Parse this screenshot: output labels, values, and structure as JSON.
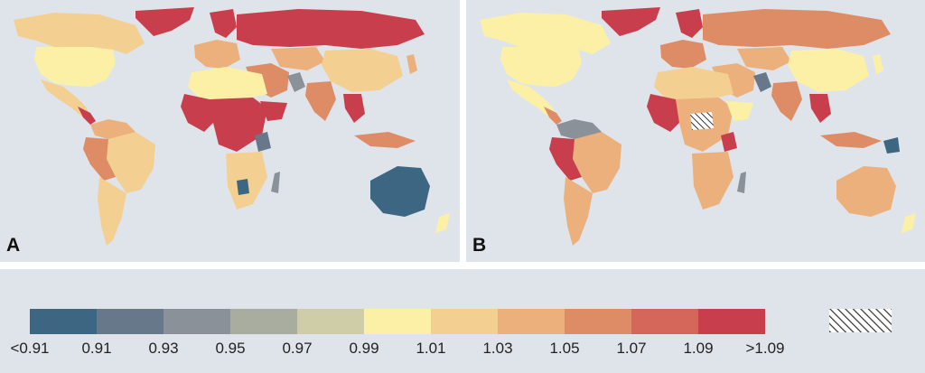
{
  "panels": [
    {
      "label": "A"
    },
    {
      "label": "B"
    }
  ],
  "legend": {
    "colors": [
      "#3d6683",
      "#66788a",
      "#8a9199",
      "#a9ad9f",
      "#cfcca8",
      "#fbf0a6",
      "#f3cf92",
      "#ebb07b",
      "#de8c66",
      "#d4675a",
      "#c83e4d"
    ],
    "tick_labels": [
      "<0.91",
      "0.91",
      "0.93",
      "0.95",
      "0.97",
      "0.99",
      "1.01",
      "1.03",
      "1.05",
      "1.07",
      "1.09",
      ">1.09"
    ],
    "no_data_pattern": "hatched"
  }
}
